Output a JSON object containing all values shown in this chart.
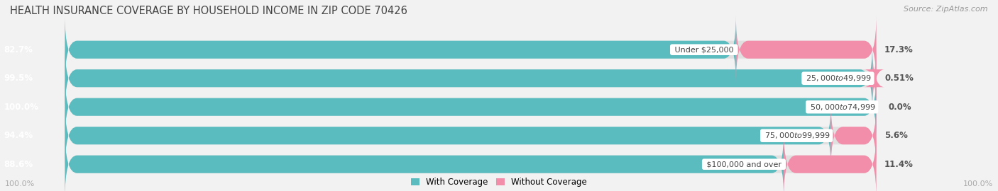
{
  "title": "HEALTH INSURANCE COVERAGE BY HOUSEHOLD INCOME IN ZIP CODE 70426",
  "source": "Source: ZipAtlas.com",
  "categories": [
    "Under $25,000",
    "$25,000 to $49,999",
    "$50,000 to $74,999",
    "$75,000 to $99,999",
    "$100,000 and over"
  ],
  "with_coverage": [
    82.7,
    99.5,
    100.0,
    94.4,
    88.6
  ],
  "without_coverage": [
    17.3,
    0.51,
    0.0,
    5.6,
    11.4
  ],
  "with_coverage_color": "#5bbcbf",
  "without_coverage_color": "#f28daa",
  "bg_color": "#f2f2f2",
  "row_bg_color": "#e0e0e0",
  "title_fontsize": 10.5,
  "source_fontsize": 8,
  "bar_label_fontsize": 8.5,
  "cat_label_fontsize": 8,
  "legend_fontsize": 8.5,
  "footer_fontsize": 8,
  "bar_height": 0.62,
  "total_width": 100
}
